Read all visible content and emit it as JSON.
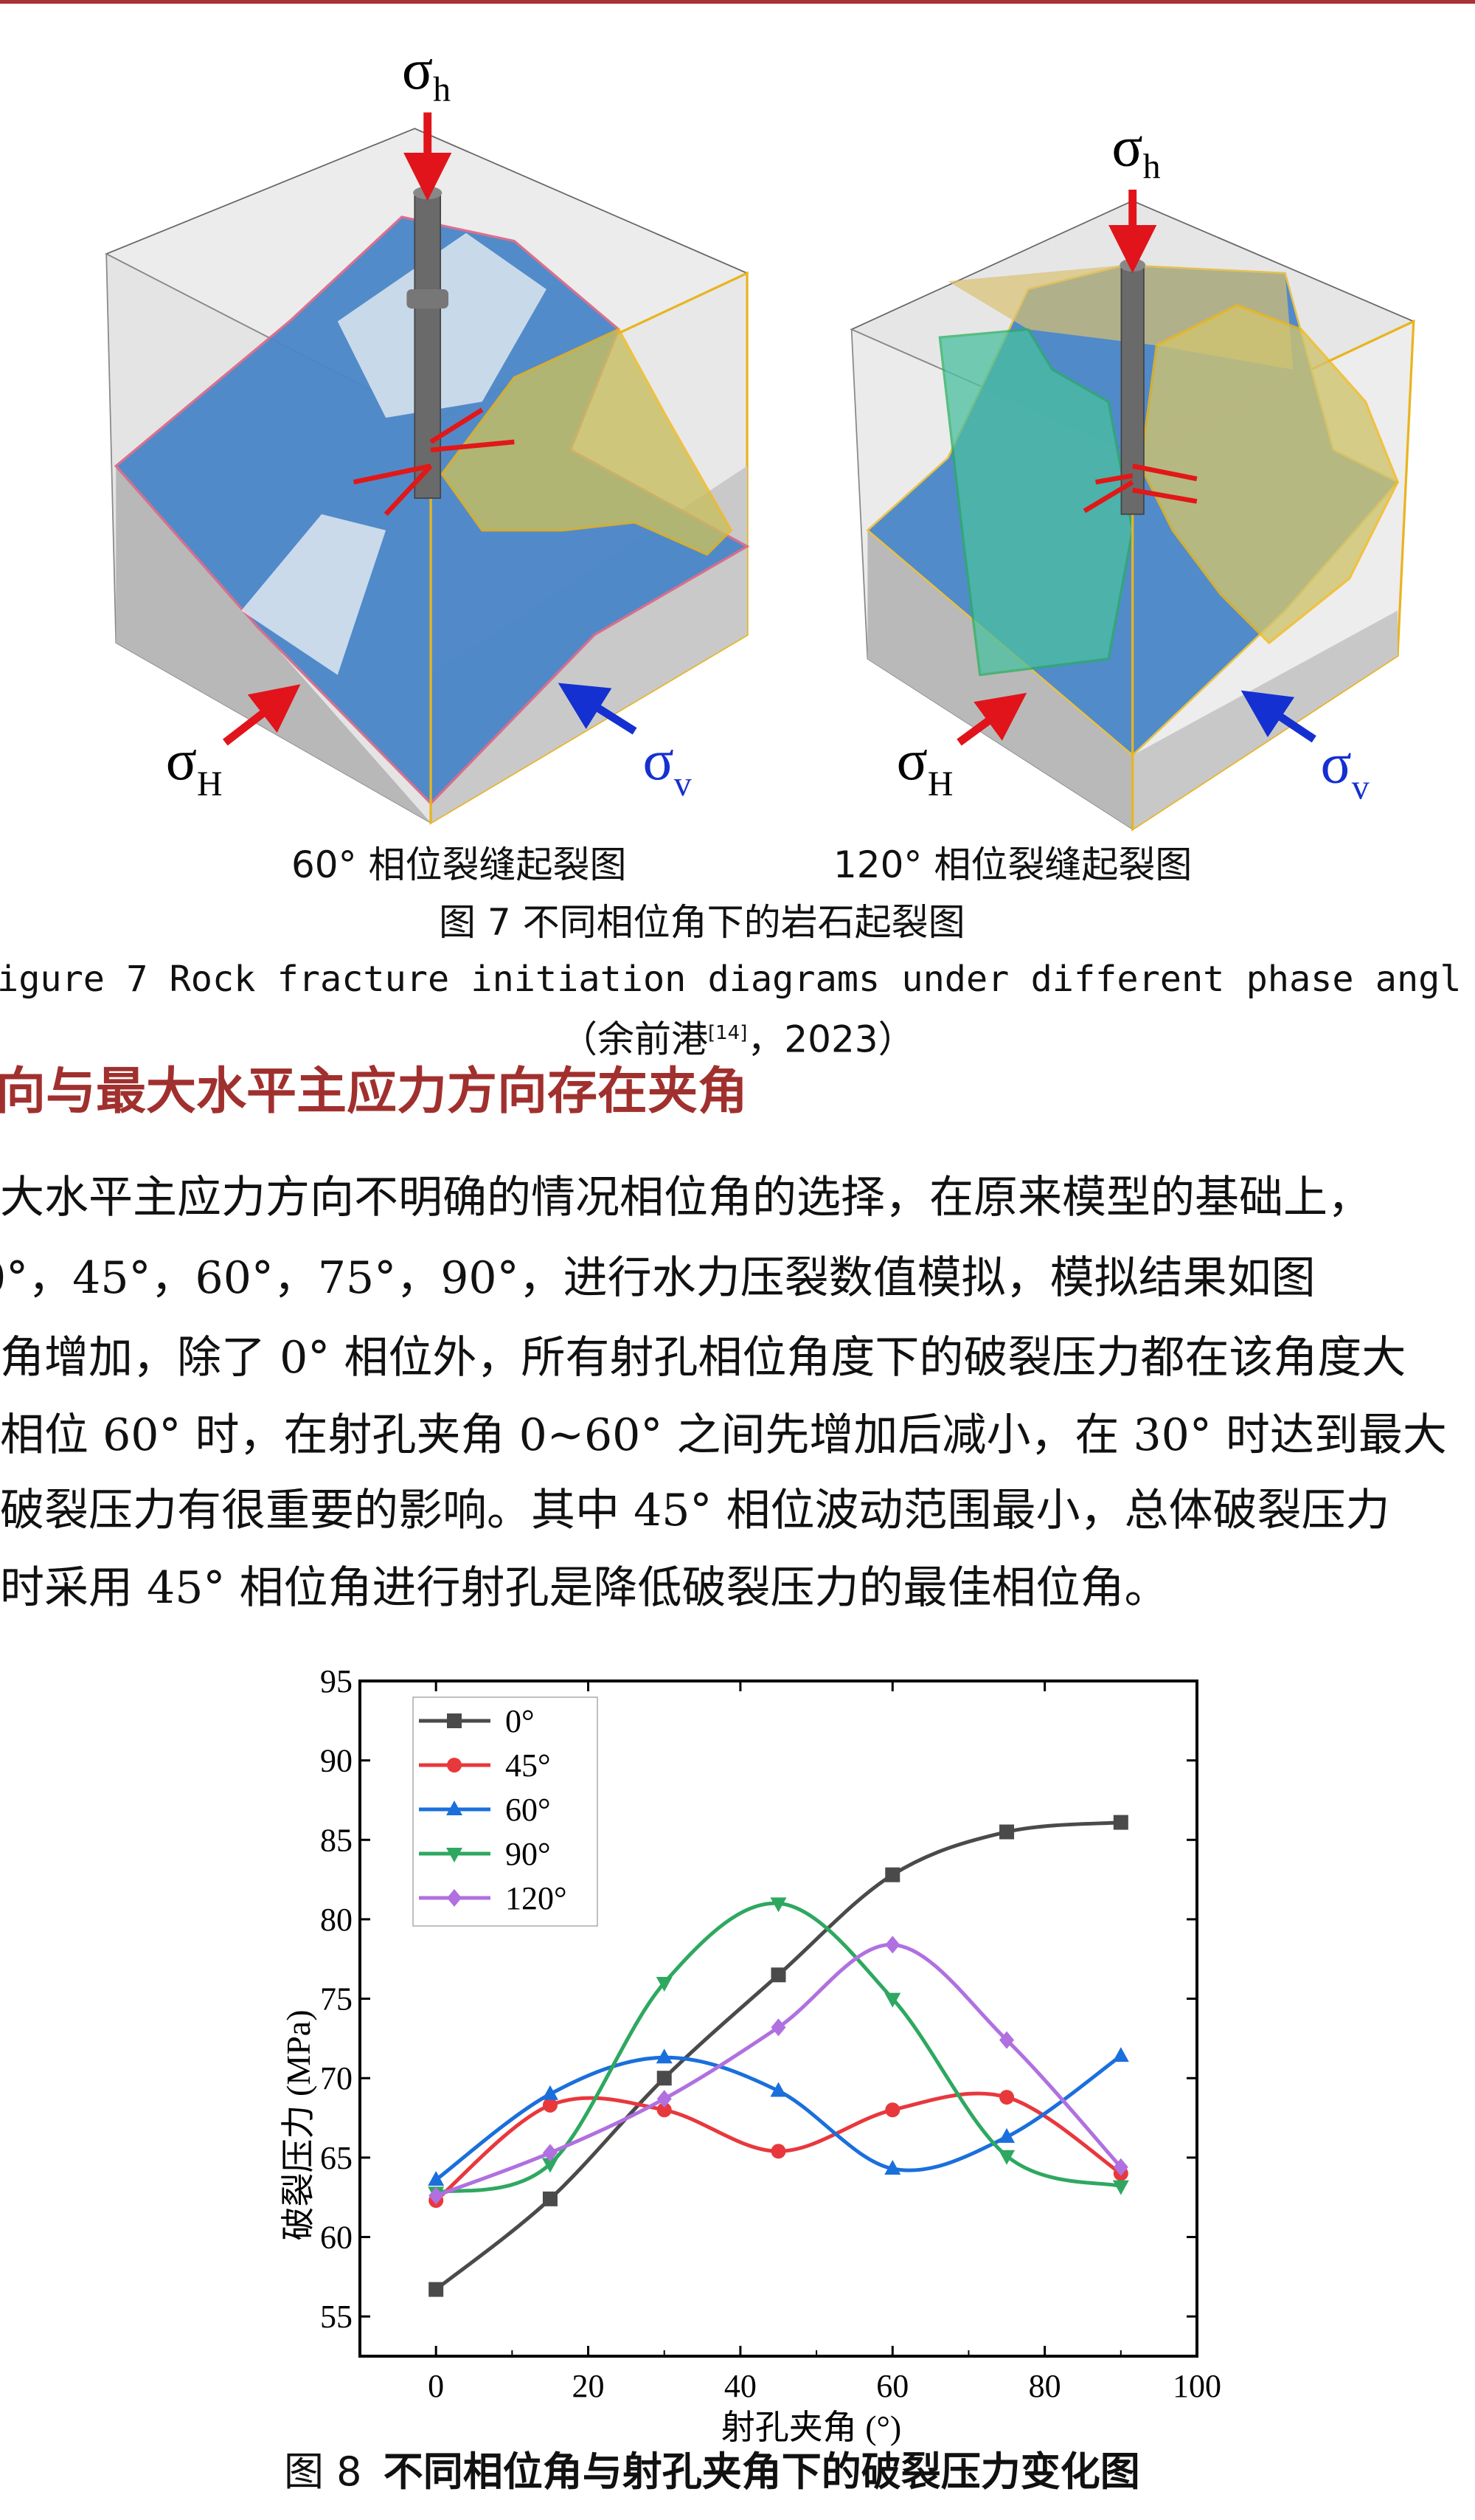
{
  "figure7": {
    "labels": {
      "sigma_h": "σ",
      "sigma_h_sub": "h",
      "sigma_H": "σ",
      "sigma_H_sub": "H",
      "sigma_v": "σ",
      "sigma_v_sub": "v"
    },
    "colors": {
      "fracture_blue": "#4a86c8",
      "fracture_yellow": "#d8c860",
      "fracture_green": "#3fbf8a",
      "arrow_red": "#e0141a",
      "arrow_blue": "#1530d0",
      "outline_yellow": "#f0b818",
      "outline_pink": "#d86a8a"
    },
    "sub_caption_left": "60° 相位裂缝起裂图",
    "sub_caption_right": "120° 相位裂缝起裂图",
    "caption_cn": "图 7 不同相位角下的岩石起裂图",
    "caption_en": "igure 7 Rock fracture initiation diagrams under different phase angl",
    "citation_prefix": "（余前港",
    "citation_ref": "[14]",
    "citation_suffix": "，2023）"
  },
  "section": {
    "heading": "向与最大水平主应力方向存在夹角",
    "heading_color": "#a0302e",
    "paragraph_lines": [
      "大水平主应力方向不明确的情况相位角的选择，在原来模型的基础上，",
      "0°，45°，60°，75°，90°，进行水力压裂数值模拟，模拟结果如图",
      "角增加，除了 0° 相位外，所有射孔相位角度下的破裂压力都在该角度大",
      "相位 60° 时，在射孔夹角 0~60° 之间先增加后减小，在 30° 时达到最大",
      "破裂压力有很重要的影响。其中 45° 相位波动范围最小，总体破裂压力",
      "时采用 45° 相位角进行射孔是降低破裂压力的最佳相位角。"
    ]
  },
  "chart_data": {
    "type": "line",
    "xlabel": "射孔夹角 (°)",
    "ylabel": "破裂压力 (MPa)",
    "xlim": [
      -10,
      100
    ],
    "ylim": [
      52.5,
      95
    ],
    "xticks": [
      0,
      20,
      40,
      60,
      80,
      100
    ],
    "yticks": [
      55,
      60,
      65,
      70,
      75,
      80,
      85,
      90,
      95
    ],
    "grid": false,
    "legend": "top-left",
    "smooth": true,
    "x": [
      0,
      15,
      30,
      45,
      60,
      75,
      90
    ],
    "series": [
      {
        "name": "0°",
        "color": "#4a4a4a",
        "marker": "square",
        "values": [
          56.7,
          62.4,
          70.0,
          76.5,
          82.8,
          85.5,
          86.1
        ]
      },
      {
        "name": "45°",
        "color": "#e8383c",
        "marker": "circle",
        "values": [
          62.3,
          68.3,
          68.0,
          65.4,
          68.0,
          68.8,
          64.0
        ]
      },
      {
        "name": "60°",
        "color": "#1a6fdc",
        "marker": "triangle-up",
        "values": [
          63.6,
          69.0,
          71.3,
          69.2,
          64.3,
          66.3,
          71.4
        ]
      },
      {
        "name": "90°",
        "color": "#2ea860",
        "marker": "triangle-down",
        "values": [
          62.8,
          64.6,
          76.0,
          81.0,
          75.0,
          65.1,
          63.2
        ]
      },
      {
        "name": "120°",
        "color": "#b070e0",
        "marker": "diamond",
        "values": [
          62.6,
          65.3,
          68.7,
          73.2,
          78.4,
          72.4,
          64.4
        ]
      }
    ]
  },
  "figure8": {
    "caption_prefix": "图 8",
    "caption_rest": "不同相位角与射孔夹角下的破裂压力变化图"
  }
}
